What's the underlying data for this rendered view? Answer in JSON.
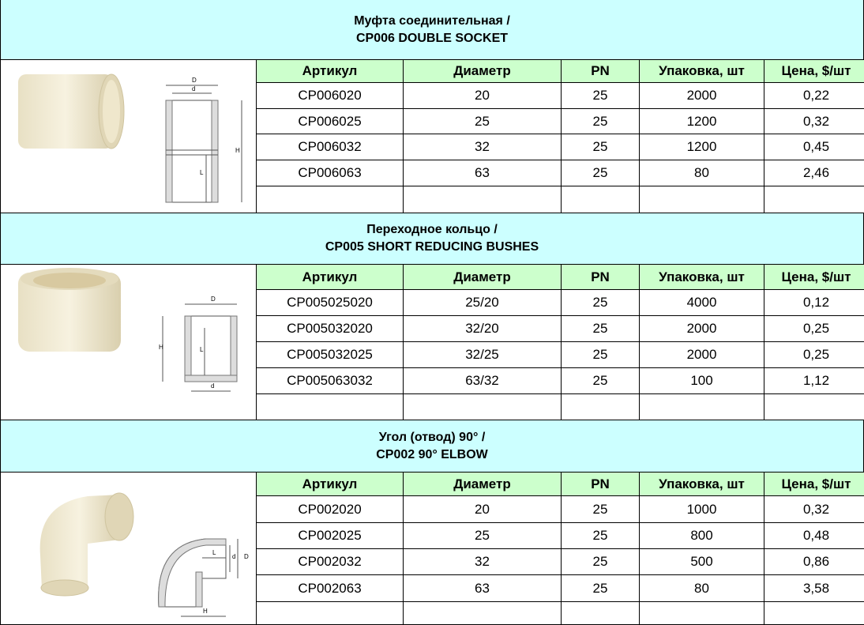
{
  "sections": [
    {
      "title_ru": "Муфта соединительная /",
      "title_en": "CP006 DOUBLE SOCKET",
      "headers": [
        "Артикул",
        "Диаметр",
        "PN",
        "Упаковка, шт",
        "Цена, $/шт"
      ],
      "rows": [
        [
          "CP006020",
          "20",
          "25",
          "2000",
          "0,22"
        ],
        [
          "CP006025",
          "25",
          "25",
          "1200",
          "0,32"
        ],
        [
          "CP006032",
          "32",
          "25",
          "1200",
          "0,45"
        ],
        [
          "CP006063",
          "63",
          "25",
          "80",
          "2,46"
        ]
      ],
      "drawing_labels": [
        "D",
        "d",
        "H",
        "L"
      ]
    },
    {
      "title_ru": "Переходное кольцо /",
      "title_en": "CP005 SHORT REDUCING BUSHES",
      "headers": [
        "Артикул",
        "Диаметр",
        "PN",
        "Упаковка, шт",
        "Цена, $/шт"
      ],
      "rows": [
        [
          "CP005025020",
          "25/20",
          "25",
          "4000",
          "0,12"
        ],
        [
          "CP005032020",
          "32/20",
          "25",
          "2000",
          "0,25"
        ],
        [
          "CP005032025",
          "32/25",
          "25",
          "2000",
          "0,25"
        ],
        [
          "CP005063032",
          "63/32",
          "25",
          "100",
          "1,12"
        ]
      ],
      "drawing_labels": [
        "D",
        "H",
        "L",
        "d"
      ]
    },
    {
      "title_ru": "Угол (отвод) 90° /",
      "title_en": "CP002 90° ELBOW",
      "headers": [
        "Артикул",
        "Диаметр",
        "PN",
        "Упаковка, шт",
        "Цена, $/шт"
      ],
      "rows": [
        [
          "CP002020",
          "20",
          "25",
          "1000",
          "0,32"
        ],
        [
          "CP002025",
          "25",
          "25",
          "800",
          "0,48"
        ],
        [
          "CP002032",
          "32",
          "25",
          "500",
          "0,86"
        ],
        [
          "CP002063",
          "63",
          "25",
          "80",
          "3,58"
        ]
      ],
      "drawing_labels": [
        "L",
        "d",
        "D",
        "H"
      ]
    }
  ]
}
